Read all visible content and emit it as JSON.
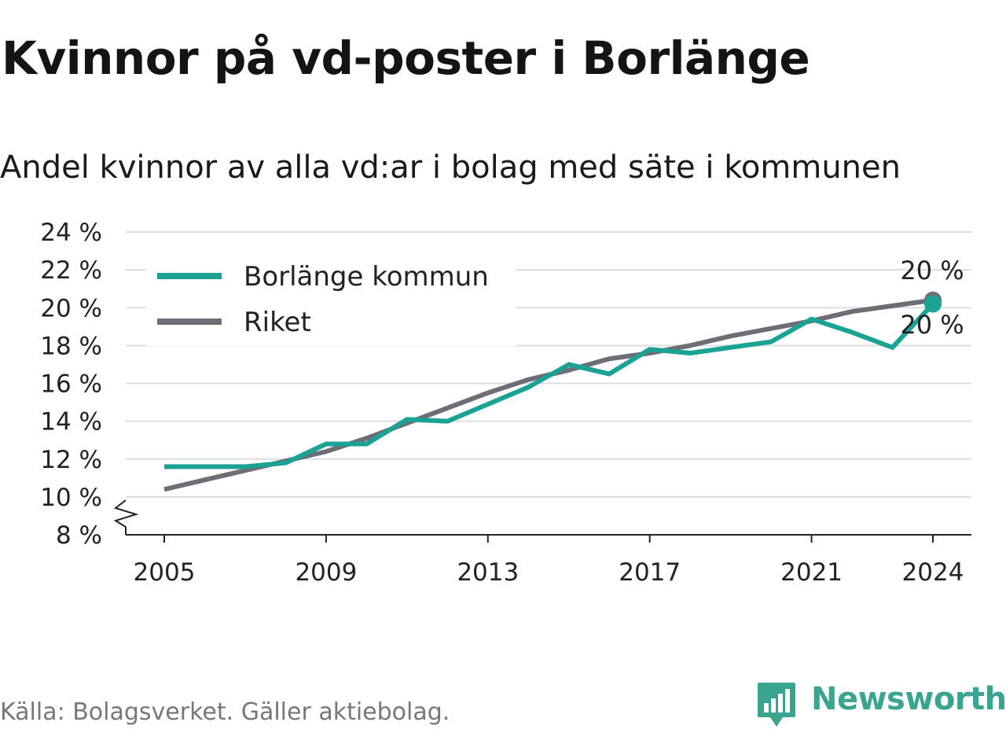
{
  "title": "Kvinnor på vd-poster i Borlänge",
  "subtitle": "Andel kvinnor av alla vd:ar i bolag med säte i kommunen",
  "source": "Källa: Bolagsverket. Gäller aktiebolag.",
  "brand": "Newsworthy",
  "colors": {
    "borlange": "#1aa394",
    "riket": "#6e6c75",
    "grid": "#dddddd"
  },
  "chart_data": {
    "type": "line",
    "title": "Kvinnor på vd-poster i Borlänge",
    "subtitle": "Andel kvinnor av alla vd:ar i bolag med säte i kommunen",
    "xlabel": "",
    "ylabel": "",
    "x": [
      2005,
      2006,
      2007,
      2008,
      2009,
      2010,
      2011,
      2012,
      2013,
      2014,
      2015,
      2016,
      2017,
      2018,
      2019,
      2020,
      2021,
      2022,
      2023,
      2024
    ],
    "xticks": [
      2005,
      2009,
      2013,
      2017,
      2021,
      2024
    ],
    "xtick_labels": [
      "2005",
      "2009",
      "2013",
      "2017",
      "2021",
      "2024"
    ],
    "ylim": [
      8,
      24
    ],
    "yticks": [
      8,
      10,
      12,
      14,
      16,
      18,
      20,
      22,
      24
    ],
    "ytick_labels": [
      "8 %",
      "10 %",
      "12 %",
      "14 %",
      "16 %",
      "18 %",
      "20 %",
      "22 %",
      "24 %"
    ],
    "axis_break": true,
    "grid": true,
    "legend": "top-left",
    "series": [
      {
        "name": "Borlänge kommun",
        "color": "#1aa394",
        "values": [
          11.6,
          11.6,
          11.6,
          11.8,
          12.8,
          12.8,
          14.1,
          14.0,
          14.9,
          15.8,
          17.0,
          16.5,
          17.8,
          17.6,
          17.9,
          18.2,
          19.4,
          18.7,
          17.9,
          20.2
        ],
        "end_label": "20 %"
      },
      {
        "name": "Riket",
        "color": "#6e6c75",
        "values": [
          10.4,
          10.9,
          11.4,
          11.9,
          12.4,
          13.1,
          13.9,
          14.7,
          15.5,
          16.2,
          16.7,
          17.3,
          17.6,
          18.0,
          18.5,
          18.9,
          19.3,
          19.8,
          20.1,
          20.4
        ],
        "end_label": "20 %"
      }
    ]
  }
}
